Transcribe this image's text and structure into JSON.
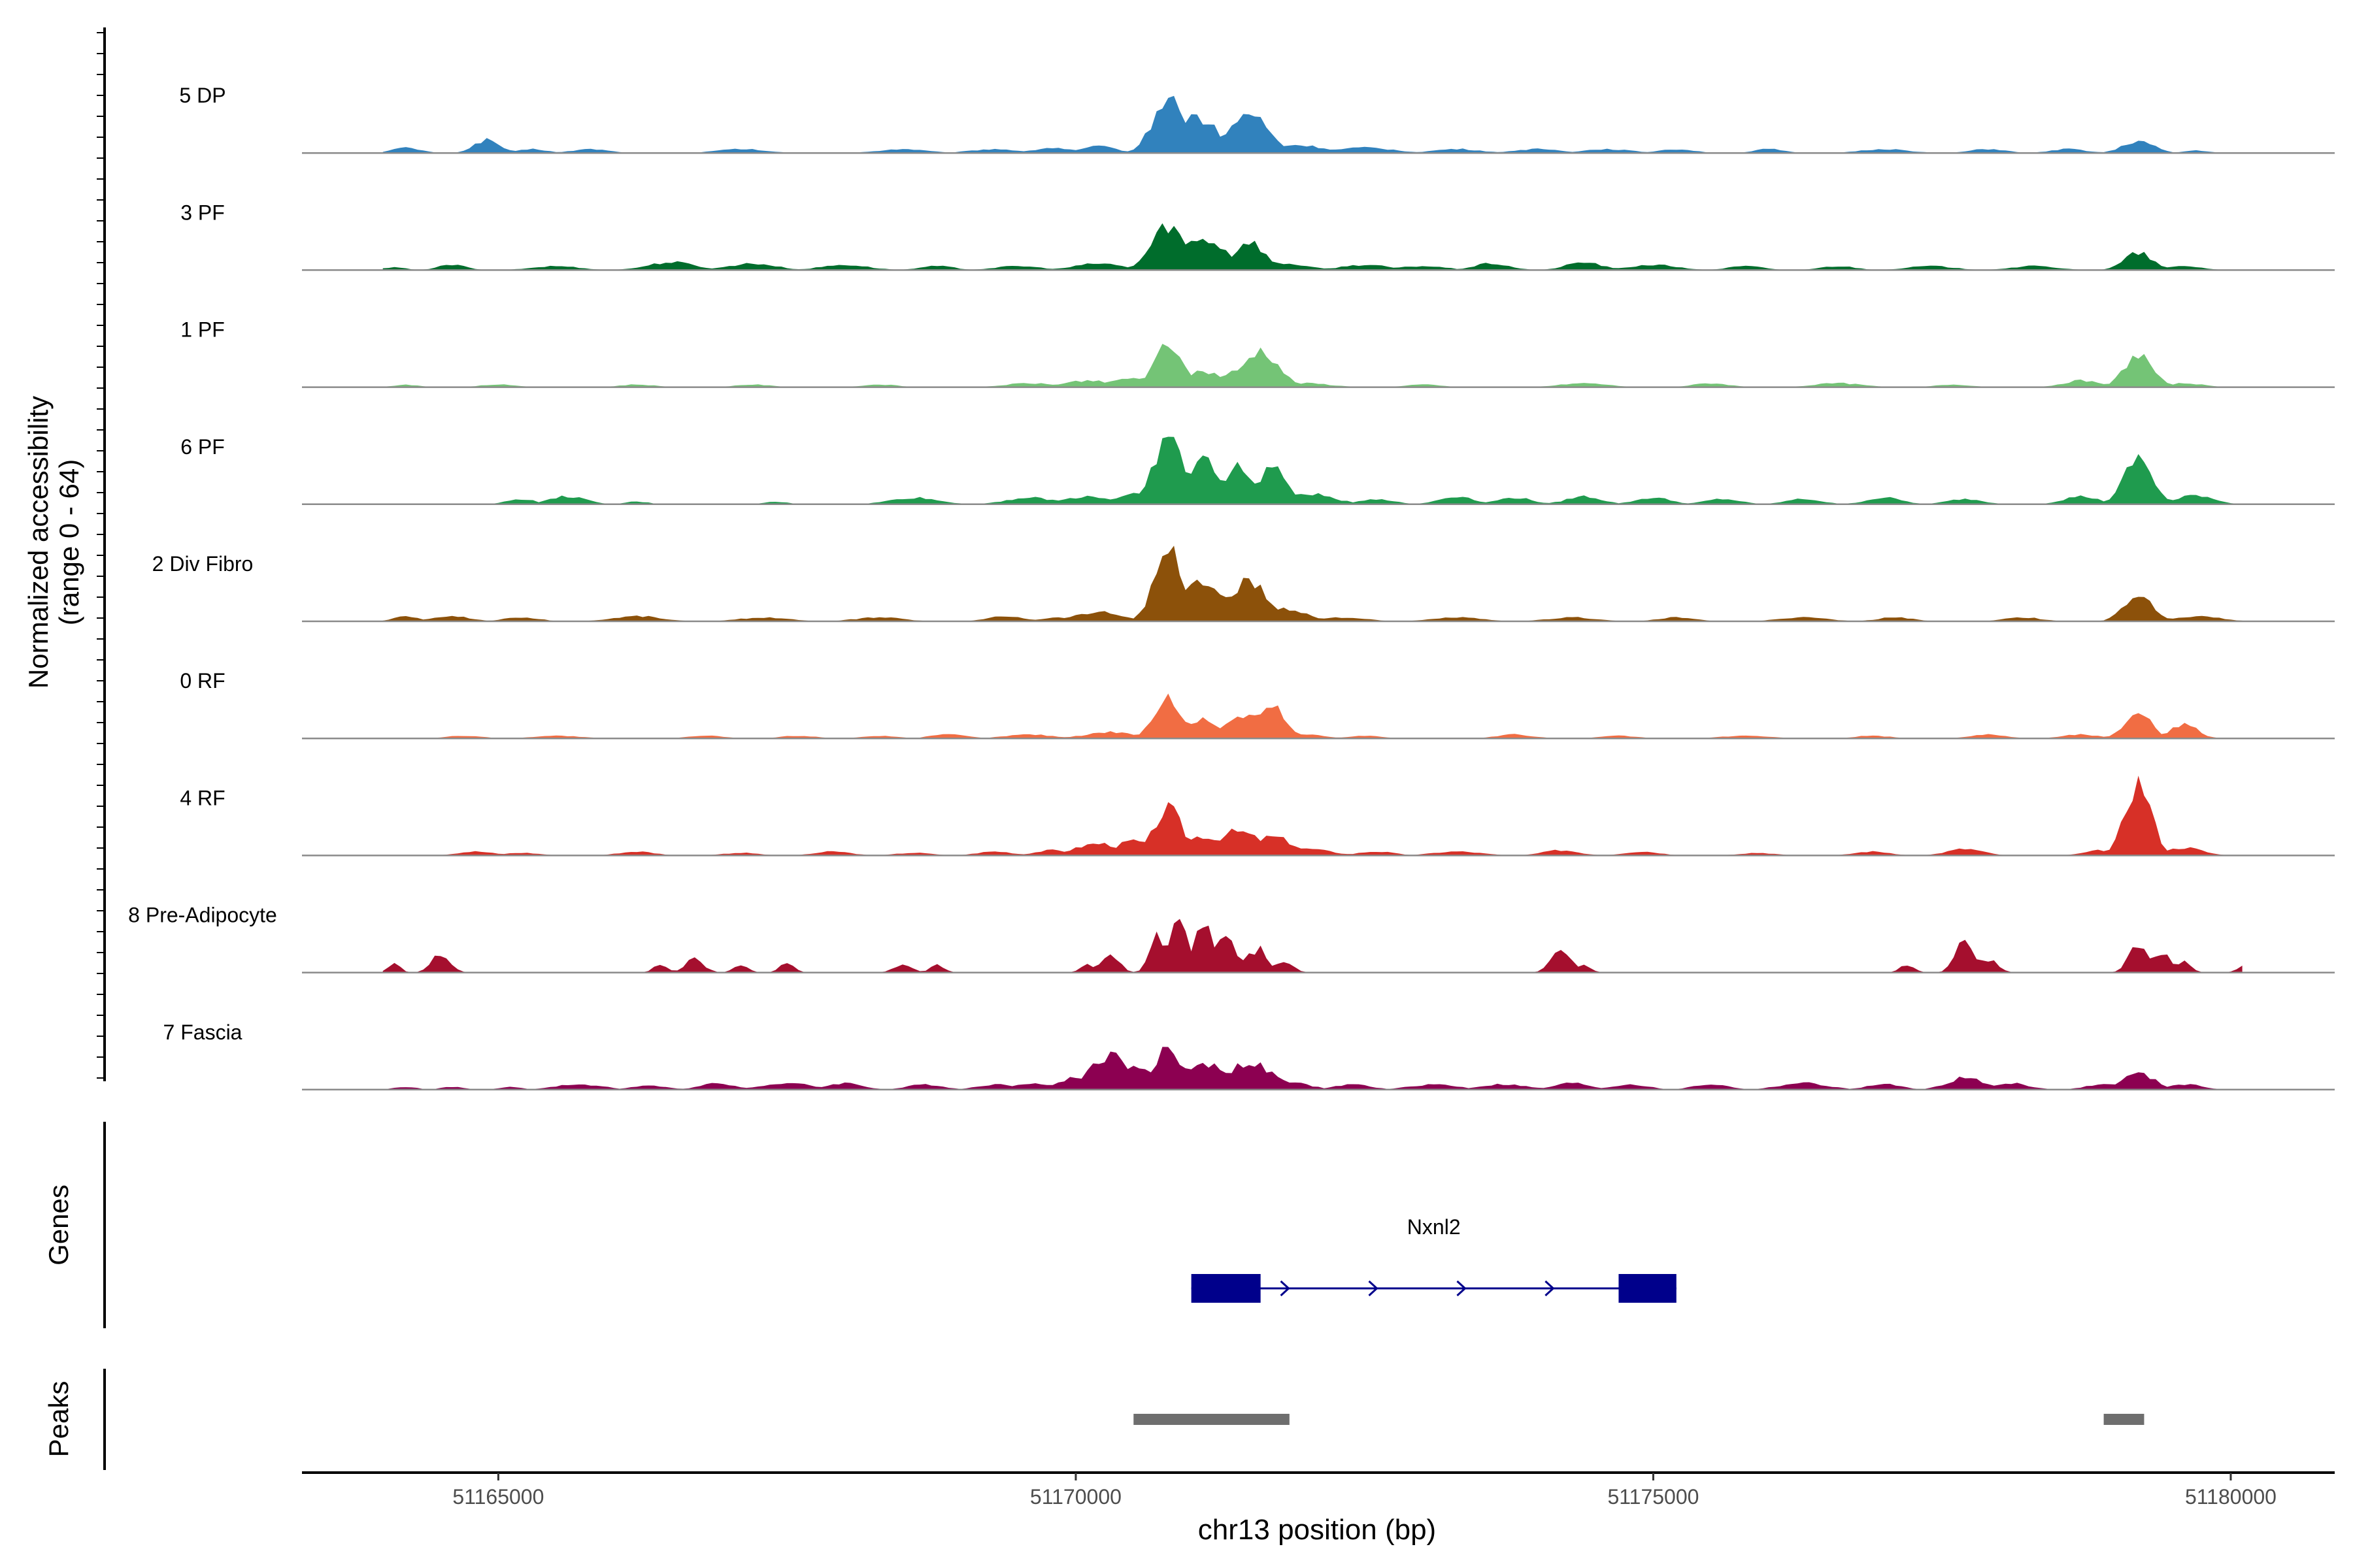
{
  "chart_data": {
    "type": "area",
    "title": "",
    "ylabel_lines": [
      "Normalized accessibility",
      "(range 0 - 64)"
    ],
    "y_range": [
      0,
      64
    ],
    "xlabel": "chr13 position (bp)",
    "xlim": [
      51163300,
      51180900
    ],
    "x_ticks": [
      51165000,
      51170000,
      51175000,
      51180000
    ],
    "x_tick_labels": [
      "51165000",
      "51170000",
      "51175000",
      "51180000"
    ],
    "data_start": 51164000,
    "data_end": 51180100,
    "data_step": 100,
    "series": [
      {
        "name": "5 DP",
        "color": "#3182bd",
        "peaks": [
          [
            51164200,
            4,
            120
          ],
          [
            51164900,
            10,
            110
          ],
          [
            51165300,
            3,
            120
          ],
          [
            51165800,
            3,
            150
          ],
          [
            51167100,
            3,
            200
          ],
          [
            51168500,
            3,
            200
          ],
          [
            51169300,
            3,
            200
          ],
          [
            51169800,
            4,
            150
          ],
          [
            51170200,
            5,
            150
          ],
          [
            51170800,
            42,
            130
          ],
          [
            51171000,
            28,
            220
          ],
          [
            51171500,
            30,
            160
          ],
          [
            51171900,
            6,
            250
          ],
          [
            51172500,
            4,
            250
          ],
          [
            51173300,
            3,
            200
          ],
          [
            51174000,
            3,
            200
          ],
          [
            51174600,
            3,
            200
          ],
          [
            51175200,
            3,
            150
          ],
          [
            51176000,
            3,
            120
          ],
          [
            51177000,
            3,
            200
          ],
          [
            51177900,
            3,
            150
          ],
          [
            51178600,
            3,
            150
          ],
          [
            51179200,
            9,
            130
          ],
          [
            51179700,
            2,
            100
          ]
        ]
      },
      {
        "name": "3 PF",
        "color": "#006d2c",
        "peaks": [
          [
            51164100,
            2,
            100
          ],
          [
            51164600,
            4,
            120
          ],
          [
            51165500,
            3,
            200
          ],
          [
            51166500,
            6,
            200
          ],
          [
            51167200,
            5,
            200
          ],
          [
            51168000,
            4,
            200
          ],
          [
            51168800,
            3,
            150
          ],
          [
            51169500,
            3,
            200
          ],
          [
            51170200,
            5,
            200
          ],
          [
            51170800,
            34,
            140
          ],
          [
            51171100,
            24,
            200
          ],
          [
            51171500,
            22,
            130
          ],
          [
            51171800,
            5,
            200
          ],
          [
            51172500,
            4,
            200
          ],
          [
            51173000,
            3,
            200
          ],
          [
            51173600,
            5,
            150
          ],
          [
            51174400,
            6,
            150
          ],
          [
            51175000,
            4,
            200
          ],
          [
            51175800,
            3,
            150
          ],
          [
            51176600,
            3,
            150
          ],
          [
            51177400,
            3,
            200
          ],
          [
            51178300,
            3,
            200
          ],
          [
            51179200,
            13,
            120
          ],
          [
            51179600,
            3,
            150
          ]
        ]
      },
      {
        "name": "1 PF",
        "color": "#74c476",
        "peaks": [
          [
            51164200,
            2,
            100
          ],
          [
            51165000,
            2,
            150
          ],
          [
            51166200,
            2,
            150
          ],
          [
            51167200,
            2,
            150
          ],
          [
            51168300,
            2,
            150
          ],
          [
            51169600,
            3,
            200
          ],
          [
            51170100,
            5,
            200
          ],
          [
            51170500,
            7,
            180
          ],
          [
            51170800,
            34,
            110
          ],
          [
            51171100,
            12,
            180
          ],
          [
            51171600,
            28,
            150
          ],
          [
            51171400,
            12,
            150
          ],
          [
            51172000,
            3,
            200
          ],
          [
            51173000,
            2,
            150
          ],
          [
            51174400,
            3,
            200
          ],
          [
            51175500,
            3,
            150
          ],
          [
            51176600,
            3,
            200
          ],
          [
            51177600,
            2,
            150
          ],
          [
            51178700,
            5,
            150
          ],
          [
            51179200,
            25,
            120
          ],
          [
            51179600,
            3,
            150
          ]
        ]
      },
      {
        "name": "6 PF",
        "color": "#1f9b4e",
        "peaks": [
          [
            51165200,
            4,
            120
          ],
          [
            51165600,
            6,
            150
          ],
          [
            51166200,
            2,
            100
          ],
          [
            51167400,
            2,
            100
          ],
          [
            51168600,
            5,
            200
          ],
          [
            51169600,
            5,
            200
          ],
          [
            51170100,
            6,
            200
          ],
          [
            51170500,
            8,
            150
          ],
          [
            51170800,
            52,
            120
          ],
          [
            51171100,
            34,
            140
          ],
          [
            51171400,
            28,
            130
          ],
          [
            51171700,
            30,
            110
          ],
          [
            51172000,
            8,
            220
          ],
          [
            51172600,
            4,
            150
          ],
          [
            51173300,
            6,
            150
          ],
          [
            51173800,
            5,
            150
          ],
          [
            51174400,
            6,
            150
          ],
          [
            51175000,
            5,
            150
          ],
          [
            51175600,
            4,
            150
          ],
          [
            51176300,
            4,
            150
          ],
          [
            51177000,
            5,
            150
          ],
          [
            51177700,
            4,
            150
          ],
          [
            51178700,
            6,
            150
          ],
          [
            51179200,
            35,
            120
          ],
          [
            51179700,
            7,
            150
          ]
        ]
      },
      {
        "name": "2 Div Fibro",
        "color": "#8c510a",
        "peaks": [
          [
            51164200,
            4,
            100
          ],
          [
            51164600,
            4,
            150
          ],
          [
            51165200,
            3,
            150
          ],
          [
            51166200,
            4,
            200
          ],
          [
            51167300,
            3,
            200
          ],
          [
            51168300,
            3,
            200
          ],
          [
            51169400,
            4,
            150
          ],
          [
            51169900,
            3,
            200
          ],
          [
            51170200,
            7,
            200
          ],
          [
            51170800,
            54,
            120
          ],
          [
            51171100,
            30,
            180
          ],
          [
            51171500,
            30,
            150
          ],
          [
            51171800,
            10,
            180
          ],
          [
            51172300,
            3,
            200
          ],
          [
            51173300,
            3,
            200
          ],
          [
            51174300,
            3,
            200
          ],
          [
            51175200,
            3,
            150
          ],
          [
            51176300,
            3,
            200
          ],
          [
            51177100,
            3,
            150
          ],
          [
            51178200,
            3,
            150
          ],
          [
            51179200,
            20,
            120
          ],
          [
            51179700,
            4,
            200
          ]
        ]
      },
      {
        "name": "0 RF",
        "color": "#f16d43",
        "peaks": [
          [
            51164700,
            2,
            150
          ],
          [
            51165500,
            2,
            200
          ],
          [
            51166800,
            2,
            150
          ],
          [
            51167600,
            2,
            150
          ],
          [
            51168300,
            2,
            150
          ],
          [
            51168900,
            3,
            150
          ],
          [
            51169600,
            3,
            200
          ],
          [
            51170300,
            5,
            200
          ],
          [
            51170800,
            30,
            120
          ],
          [
            51171100,
            14,
            150
          ],
          [
            51171500,
            18,
            200
          ],
          [
            51171700,
            25,
            110
          ],
          [
            51172000,
            3,
            150
          ],
          [
            51172500,
            2,
            150
          ],
          [
            51173800,
            3,
            150
          ],
          [
            51174700,
            2,
            150
          ],
          [
            51175800,
            2,
            200
          ],
          [
            51176900,
            2,
            150
          ],
          [
            51177900,
            3,
            150
          ],
          [
            51178700,
            3,
            150
          ],
          [
            51179200,
            21,
            110
          ],
          [
            51179600,
            11,
            110
          ]
        ]
      },
      {
        "name": "4 RF",
        "color": "#d73027",
        "peaks": [
          [
            51164800,
            3,
            150
          ],
          [
            51165200,
            2,
            150
          ],
          [
            51166200,
            3,
            150
          ],
          [
            51167100,
            2,
            150
          ],
          [
            51167900,
            3,
            150
          ],
          [
            51168600,
            2,
            150
          ],
          [
            51169300,
            3,
            150
          ],
          [
            51169800,
            4,
            150
          ],
          [
            51170200,
            9,
            200
          ],
          [
            51170500,
            11,
            150
          ],
          [
            51170800,
            35,
            120
          ],
          [
            51171100,
            15,
            150
          ],
          [
            51171400,
            18,
            200
          ],
          [
            51171700,
            14,
            180
          ],
          [
            51172000,
            5,
            200
          ],
          [
            51172600,
            3,
            150
          ],
          [
            51173300,
            3,
            200
          ],
          [
            51174200,
            4,
            150
          ],
          [
            51174900,
            3,
            150
          ],
          [
            51175900,
            2,
            150
          ],
          [
            51176900,
            3,
            150
          ],
          [
            51177700,
            5,
            150
          ],
          [
            51178900,
            4,
            150
          ],
          [
            51179200,
            56,
            110
          ],
          [
            51179600,
            6,
            150
          ]
        ]
      },
      {
        "name": "8 Pre-Adipocyte",
        "color": "#a50f2e",
        "peaks": [
          [
            51164100,
            8,
            50
          ],
          [
            51164500,
            14,
            80
          ],
          [
            51166400,
            6,
            60
          ],
          [
            51166700,
            10,
            80
          ],
          [
            51167100,
            6,
            60
          ],
          [
            51167500,
            7,
            60
          ],
          [
            51168500,
            6,
            80
          ],
          [
            51168800,
            6,
            60
          ],
          [
            51170100,
            6,
            60
          ],
          [
            51170300,
            12,
            80
          ],
          [
            51170700,
            30,
            60
          ],
          [
            51170900,
            40,
            80
          ],
          [
            51171100,
            38,
            80
          ],
          [
            51171300,
            28,
            80
          ],
          [
            51171500,
            14,
            60
          ],
          [
            51171600,
            18,
            60
          ],
          [
            51171800,
            8,
            80
          ],
          [
            51174200,
            18,
            80
          ],
          [
            51174400,
            6,
            60
          ],
          [
            51177200,
            6,
            60
          ],
          [
            51177700,
            25,
            80
          ],
          [
            51177900,
            10,
            80
          ],
          [
            51179200,
            22,
            80
          ],
          [
            51179400,
            16,
            80
          ],
          [
            51179600,
            8,
            60
          ],
          [
            51180100,
            5,
            50
          ]
        ]
      },
      {
        "name": "7 Fascia",
        "color": "#8c0051",
        "peaks": [
          [
            51164200,
            2,
            100
          ],
          [
            51164600,
            2,
            100
          ],
          [
            51165100,
            2,
            100
          ],
          [
            51165700,
            4,
            200
          ],
          [
            51166300,
            3,
            150
          ],
          [
            51166900,
            5,
            150
          ],
          [
            51167500,
            5,
            200
          ],
          [
            51168000,
            5,
            150
          ],
          [
            51168700,
            4,
            150
          ],
          [
            51169300,
            4,
            150
          ],
          [
            51169600,
            5,
            150
          ],
          [
            51170000,
            9,
            150
          ],
          [
            51170300,
            26,
            180
          ],
          [
            51170500,
            18,
            130
          ],
          [
            51170800,
            32,
            110
          ],
          [
            51171100,
            20,
            200
          ],
          [
            51171500,
            20,
            200
          ],
          [
            51171800,
            6,
            200
          ],
          [
            51172400,
            4,
            150
          ],
          [
            51173100,
            4,
            200
          ],
          [
            51173700,
            4,
            200
          ],
          [
            51174300,
            5,
            150
          ],
          [
            51174800,
            4,
            150
          ],
          [
            51175500,
            4,
            150
          ],
          [
            51176300,
            5,
            200
          ],
          [
            51177000,
            4,
            150
          ],
          [
            51177700,
            9,
            150
          ],
          [
            51178100,
            5,
            150
          ],
          [
            51178900,
            4,
            150
          ],
          [
            51179200,
            12,
            140
          ],
          [
            51179600,
            4,
            150
          ]
        ]
      }
    ],
    "genes_label": "Genes",
    "gene": {
      "name": "Nxnl2",
      "start": 51171000,
      "end": 51175200,
      "strand": "+",
      "exons": [
        [
          51171000,
          51171600
        ],
        [
          51174700,
          51175200
        ]
      ],
      "color": "#00008b"
    },
    "peaks_label": "Peaks",
    "peak_regions": [
      [
        51170500,
        51171850
      ],
      [
        51178900,
        51179250
      ]
    ]
  }
}
